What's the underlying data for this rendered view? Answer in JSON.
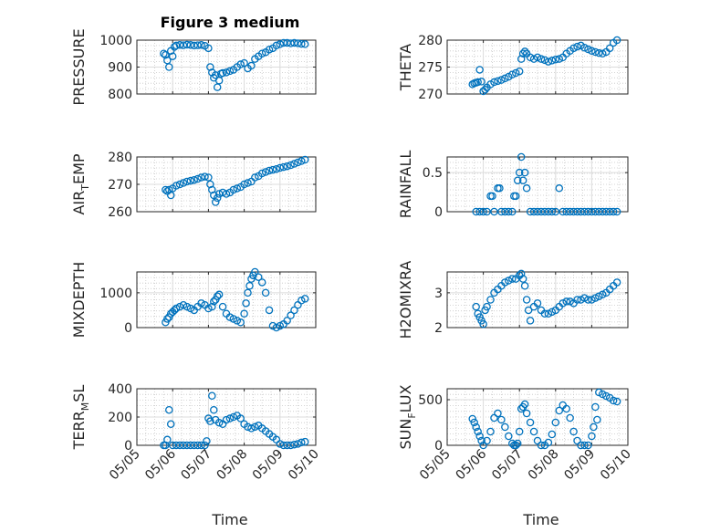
{
  "figure": {
    "title": "Figure 3 medium",
    "marker_color": "#0072BD",
    "grid": true,
    "minor_grid": true,
    "x_ticks": [
      "05/05",
      "05/06",
      "05/07",
      "05/08",
      "05/09",
      "05/10"
    ],
    "xlabel": "Time"
  },
  "chart_data": [
    {
      "type": "scatter",
      "ylabel": "PRESSURE",
      "ylabel_sub": "",
      "xlim": [
        0,
        5
      ],
      "ylim": [
        800,
        1000
      ],
      "yticks": [
        800,
        900,
        1000
      ],
      "x": [
        0.75,
        0.8,
        0.85,
        0.9,
        0.95,
        1.0,
        1.05,
        1.1,
        1.2,
        1.3,
        1.4,
        1.5,
        1.6,
        1.7,
        1.8,
        1.9,
        2.0,
        2.05,
        2.1,
        2.15,
        2.2,
        2.25,
        2.3,
        2.35,
        2.4,
        2.5,
        2.6,
        2.7,
        2.8,
        2.9,
        3.0,
        3.1,
        3.2,
        3.3,
        3.4,
        3.5,
        3.6,
        3.7,
        3.8,
        3.9,
        4.0,
        4.1,
        4.2,
        4.3,
        4.4,
        4.5,
        4.6,
        4.7
      ],
      "y": [
        950,
        945,
        925,
        900,
        960,
        940,
        975,
        980,
        982,
        981,
        983,
        982,
        980,
        981,
        982,
        979,
        970,
        900,
        880,
        860,
        870,
        825,
        850,
        875,
        878,
        880,
        885,
        890,
        900,
        910,
        915,
        895,
        905,
        930,
        940,
        950,
        955,
        965,
        970,
        980,
        985,
        990,
        990,
        988,
        990,
        988,
        986,
        985
      ]
    },
    {
      "type": "scatter",
      "ylabel": "THETA",
      "ylabel_sub": "",
      "xlim": [
        0,
        5
      ],
      "ylim": [
        270,
        280
      ],
      "yticks": [
        270,
        275,
        280
      ],
      "x": [
        0.7,
        0.75,
        0.8,
        0.85,
        0.9,
        0.95,
        1.0,
        1.05,
        1.1,
        1.2,
        1.3,
        1.4,
        1.5,
        1.6,
        1.7,
        1.8,
        1.9,
        2.0,
        2.05,
        2.1,
        2.15,
        2.2,
        2.3,
        2.4,
        2.5,
        2.6,
        2.7,
        2.8,
        2.9,
        3.0,
        3.1,
        3.2,
        3.3,
        3.4,
        3.5,
        3.6,
        3.7,
        3.8,
        3.9,
        4.0,
        4.1,
        4.2,
        4.3,
        4.4,
        4.5,
        4.6,
        4.7
      ],
      "y": [
        271.8,
        272.0,
        272.1,
        272.2,
        274.5,
        272.3,
        270.5,
        270.8,
        271.2,
        271.8,
        272.2,
        272.4,
        272.6,
        272.9,
        273.2,
        273.6,
        273.9,
        274.2,
        276.5,
        277.5,
        277.9,
        277.5,
        276.8,
        276.5,
        276.8,
        276.5,
        276.3,
        276.0,
        276.2,
        276.4,
        276.5,
        276.8,
        277.5,
        278.0,
        278.5,
        278.8,
        279.0,
        278.6,
        278.3,
        278.0,
        277.8,
        277.6,
        277.5,
        277.8,
        278.5,
        279.5,
        280.0
      ]
    },
    {
      "type": "scatter",
      "ylabel": "AIR",
      "ylabel_sub": "T",
      "ylabel_tail": "EMP",
      "xlim": [
        0,
        5
      ],
      "ylim": [
        260,
        280
      ],
      "yticks": [
        260,
        270,
        280
      ],
      "x": [
        0.8,
        0.85,
        0.9,
        0.95,
        1.0,
        1.1,
        1.2,
        1.3,
        1.4,
        1.5,
        1.6,
        1.7,
        1.8,
        1.9,
        2.0,
        2.05,
        2.1,
        2.15,
        2.2,
        2.25,
        2.3,
        2.4,
        2.5,
        2.6,
        2.7,
        2.8,
        2.9,
        3.0,
        3.1,
        3.2,
        3.3,
        3.4,
        3.5,
        3.6,
        3.7,
        3.8,
        3.9,
        4.0,
        4.1,
        4.2,
        4.3,
        4.4,
        4.5,
        4.6,
        4.7
      ],
      "y": [
        268,
        267.5,
        268,
        266,
        268.5,
        269.5,
        270,
        270.5,
        271,
        271.3,
        271.6,
        272,
        272.5,
        272.8,
        272.5,
        270,
        268,
        266,
        263.5,
        265,
        266.5,
        267,
        266.5,
        267,
        268,
        268.5,
        269,
        270,
        270.5,
        271,
        272.5,
        273,
        274,
        274.5,
        275,
        275.3,
        275.6,
        276,
        276.3,
        276.6,
        277,
        277.5,
        278,
        278.5,
        279
      ]
    },
    {
      "type": "scatter",
      "ylabel": "RAINFALL",
      "ylabel_sub": "",
      "xlim": [
        0,
        5
      ],
      "ylim": [
        0,
        0.7
      ],
      "yticks": [
        0,
        0.5
      ],
      "x": [
        0.8,
        0.9,
        1.0,
        1.1,
        1.2,
        1.25,
        1.3,
        1.4,
        1.45,
        1.5,
        1.6,
        1.7,
        1.8,
        1.85,
        1.9,
        1.95,
        2.0,
        2.05,
        2.1,
        2.15,
        2.2,
        2.3,
        2.4,
        2.5,
        2.6,
        2.7,
        2.8,
        2.9,
        3.0,
        3.1,
        3.2,
        3.3,
        3.4,
        3.5,
        3.6,
        3.7,
        3.8,
        3.9,
        4.0,
        4.1,
        4.2,
        4.3,
        4.4,
        4.5,
        4.6,
        4.7
      ],
      "y": [
        0,
        0,
        0,
        0,
        0.2,
        0.2,
        0,
        0.3,
        0.3,
        0,
        0,
        0,
        0,
        0.2,
        0.2,
        0.4,
        0.5,
        0.7,
        0.4,
        0.5,
        0.3,
        0,
        0,
        0,
        0,
        0,
        0,
        0,
        0,
        0.3,
        0,
        0,
        0,
        0,
        0,
        0,
        0,
        0,
        0,
        0,
        0,
        0,
        0,
        0,
        0,
        0
      ]
    },
    {
      "type": "scatter",
      "ylabel": "MIXDEPTH",
      "ylabel_sub": "",
      "xlim": [
        0,
        5
      ],
      "ylim": [
        0,
        1600
      ],
      "yticks": [
        0,
        1000
      ],
      "x": [
        0.8,
        0.85,
        0.9,
        0.95,
        1.0,
        1.05,
        1.1,
        1.2,
        1.3,
        1.4,
        1.5,
        1.6,
        1.7,
        1.8,
        1.9,
        2.0,
        2.1,
        2.15,
        2.2,
        2.25,
        2.3,
        2.4,
        2.5,
        2.6,
        2.7,
        2.8,
        2.9,
        3.0,
        3.05,
        3.1,
        3.15,
        3.2,
        3.25,
        3.3,
        3.4,
        3.5,
        3.6,
        3.7,
        3.8,
        3.9,
        4.0,
        4.1,
        4.2,
        4.3,
        4.4,
        4.5,
        4.6,
        4.7
      ],
      "y": [
        150,
        250,
        300,
        400,
        450,
        500,
        550,
        600,
        650,
        600,
        550,
        500,
        600,
        700,
        650,
        550,
        600,
        750,
        800,
        900,
        950,
        600,
        400,
        300,
        250,
        200,
        150,
        400,
        700,
        1000,
        1200,
        1400,
        1500,
        1600,
        1450,
        1300,
        1000,
        500,
        50,
        0,
        50,
        100,
        200,
        350,
        500,
        650,
        780,
        830
      ]
    },
    {
      "type": "scatter",
      "ylabel": "H2OMIXRA",
      "ylabel_sub": "",
      "xlim": [
        0,
        5
      ],
      "ylim": [
        2,
        3.6
      ],
      "yticks": [
        2,
        3
      ],
      "x": [
        0.8,
        0.85,
        0.9,
        0.95,
        1.0,
        1.05,
        1.1,
        1.2,
        1.3,
        1.4,
        1.5,
        1.6,
        1.7,
        1.8,
        1.9,
        2.0,
        2.05,
        2.1,
        2.15,
        2.2,
        2.25,
        2.3,
        2.4,
        2.5,
        2.6,
        2.7,
        2.8,
        2.9,
        3.0,
        3.1,
        3.2,
        3.3,
        3.4,
        3.5,
        3.6,
        3.7,
        3.8,
        3.9,
        4.0,
        4.1,
        4.2,
        4.3,
        4.4,
        4.5,
        4.6,
        4.7
      ],
      "y": [
        2.6,
        2.4,
        2.3,
        2.2,
        2.1,
        2.5,
        2.6,
        2.8,
        3.0,
        3.1,
        3.2,
        3.3,
        3.35,
        3.4,
        3.4,
        3.5,
        3.55,
        3.4,
        3.2,
        2.8,
        2.5,
        2.2,
        2.6,
        2.7,
        2.5,
        2.4,
        2.4,
        2.45,
        2.5,
        2.6,
        2.7,
        2.75,
        2.75,
        2.7,
        2.8,
        2.8,
        2.85,
        2.8,
        2.8,
        2.85,
        2.9,
        2.95,
        3.0,
        3.1,
        3.2,
        3.3
      ]
    },
    {
      "type": "scatter",
      "ylabel": "TERR",
      "ylabel_sub": "M",
      "ylabel_tail": "SL",
      "xlim": [
        0,
        5
      ],
      "ylim": [
        0,
        400
      ],
      "yticks": [
        0,
        200,
        400
      ],
      "x": [
        0.75,
        0.8,
        0.85,
        0.9,
        0.95,
        1.0,
        1.1,
        1.2,
        1.3,
        1.4,
        1.5,
        1.6,
        1.7,
        1.8,
        1.9,
        1.95,
        2.0,
        2.05,
        2.1,
        2.15,
        2.2,
        2.3,
        2.4,
        2.5,
        2.6,
        2.7,
        2.8,
        2.9,
        3.0,
        3.1,
        3.2,
        3.3,
        3.4,
        3.5,
        3.6,
        3.7,
        3.8,
        3.9,
        4.0,
        4.1,
        4.2,
        4.3,
        4.4,
        4.5,
        4.6,
        4.7
      ],
      "y": [
        0,
        0,
        40,
        250,
        150,
        0,
        0,
        0,
        0,
        0,
        0,
        0,
        0,
        0,
        0,
        30,
        190,
        170,
        350,
        250,
        180,
        160,
        150,
        180,
        190,
        200,
        210,
        190,
        150,
        130,
        120,
        130,
        140,
        120,
        100,
        80,
        60,
        40,
        10,
        0,
        0,
        0,
        5,
        10,
        20,
        25
      ]
    },
    {
      "type": "scatter",
      "ylabel": "SUN",
      "ylabel_sub": "F",
      "ylabel_tail": "LUX",
      "xlim": [
        0,
        5
      ],
      "ylim": [
        0,
        620
      ],
      "yticks": [
        0,
        500
      ],
      "x": [
        0.7,
        0.75,
        0.8,
        0.85,
        0.9,
        0.95,
        1.0,
        1.1,
        1.2,
        1.3,
        1.4,
        1.5,
        1.6,
        1.7,
        1.8,
        1.85,
        1.9,
        1.95,
        2.0,
        2.05,
        2.1,
        2.15,
        2.2,
        2.3,
        2.4,
        2.5,
        2.6,
        2.7,
        2.8,
        2.9,
        3.0,
        3.1,
        3.2,
        3.3,
        3.4,
        3.5,
        3.6,
        3.7,
        3.8,
        3.9,
        4.0,
        4.05,
        4.1,
        4.15,
        4.2,
        4.3,
        4.4,
        4.5,
        4.6,
        4.7
      ],
      "y": [
        290,
        250,
        200,
        150,
        100,
        50,
        0,
        50,
        150,
        300,
        350,
        280,
        200,
        100,
        20,
        0,
        0,
        20,
        150,
        400,
        420,
        450,
        350,
        250,
        150,
        50,
        0,
        0,
        30,
        120,
        250,
        380,
        440,
        400,
        300,
        150,
        50,
        0,
        0,
        0,
        100,
        200,
        420,
        280,
        580,
        560,
        540,
        520,
        490,
        480
      ]
    }
  ]
}
